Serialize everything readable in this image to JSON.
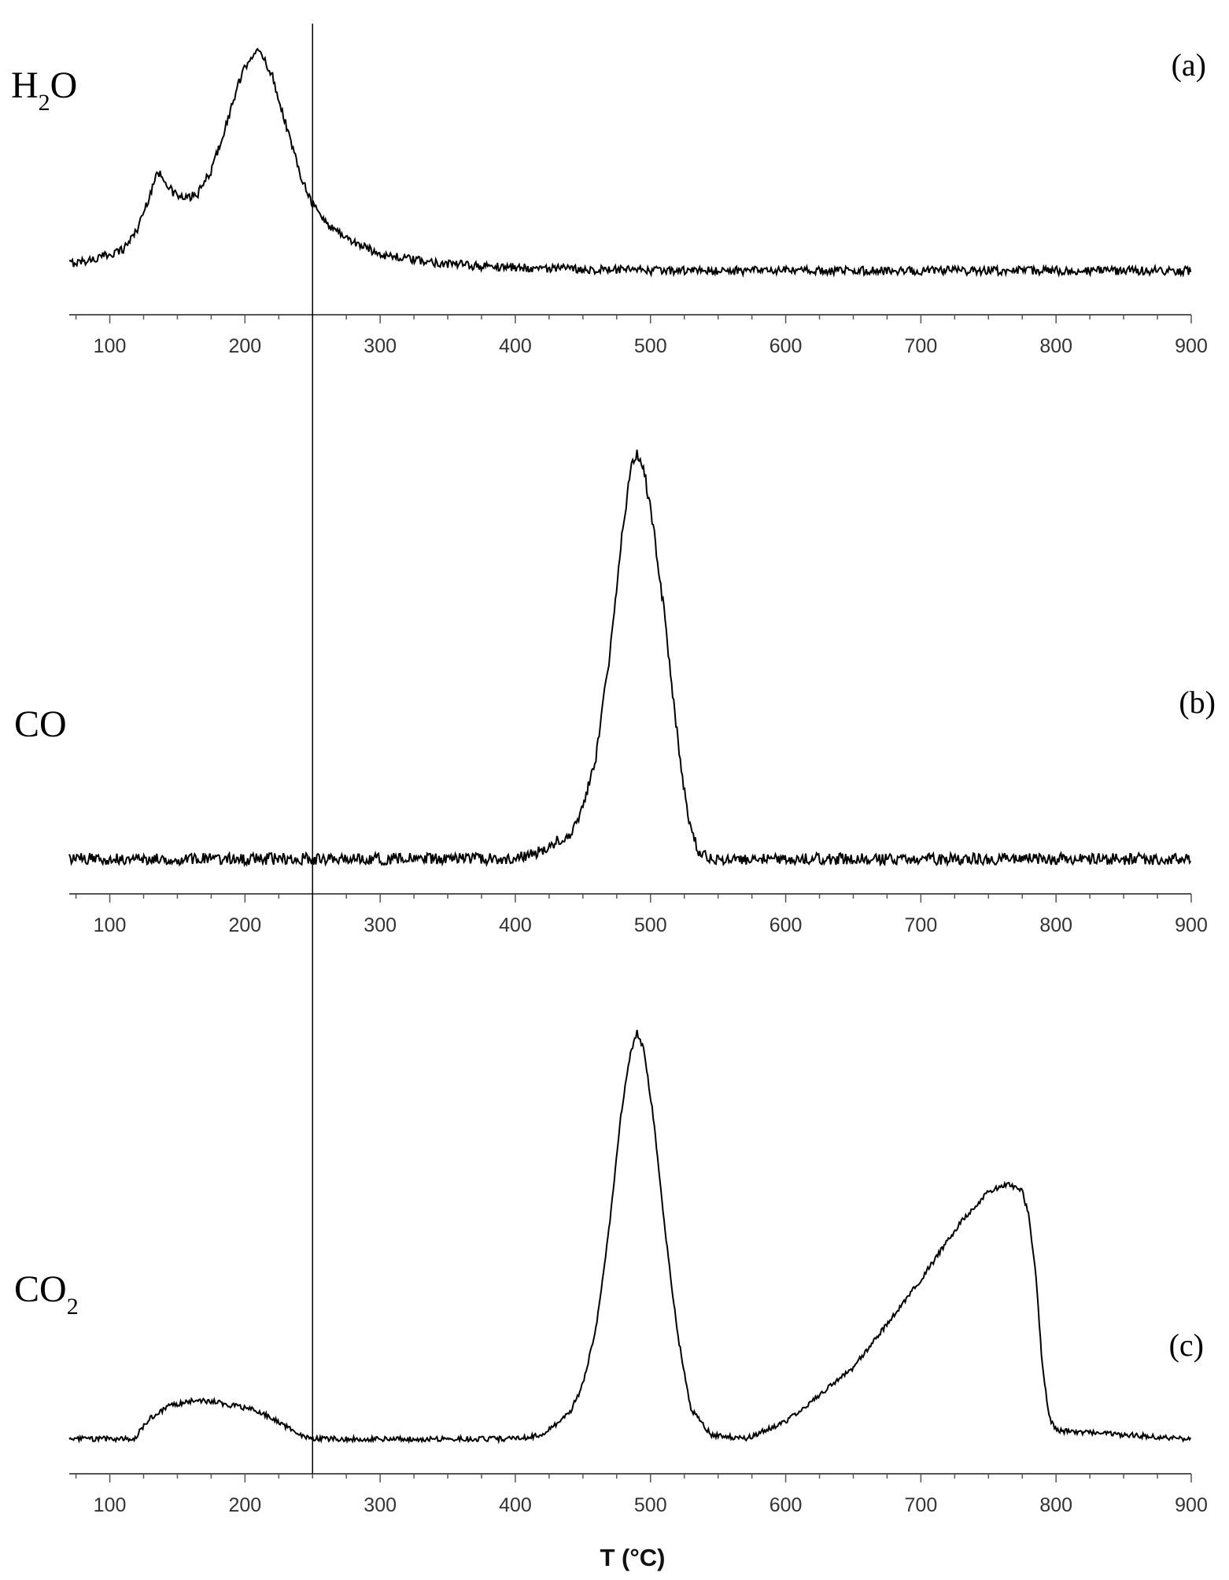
{
  "figure": {
    "xlabel": "T (°C)",
    "marker_temperature": 250,
    "line_color": "#000000"
  },
  "chart_data": [
    {
      "type": "line",
      "panel": "(a)",
      "species": {
        "main": "H",
        "sub": "2",
        "tail": "O"
      },
      "xlim": [
        70,
        900
      ],
      "x_ticks": [
        100,
        200,
        300,
        400,
        500,
        600,
        700,
        800,
        900
      ],
      "noise": 0.018,
      "series": [
        {
          "x": [
            70,
            90,
            110,
            120,
            128,
            133,
            136,
            140,
            146,
            155,
            165,
            175,
            185,
            195,
            203,
            208,
            213,
            220,
            230,
            240,
            250,
            260,
            280,
            300,
            330,
            370,
            420,
            500,
            600,
            700,
            800,
            900
          ],
          "y": [
            0.08,
            0.1,
            0.14,
            0.22,
            0.34,
            0.43,
            0.46,
            0.44,
            0.38,
            0.35,
            0.37,
            0.47,
            0.64,
            0.83,
            0.94,
            0.97,
            0.95,
            0.87,
            0.67,
            0.47,
            0.33,
            0.25,
            0.17,
            0.12,
            0.09,
            0.07,
            0.06,
            0.05,
            0.05,
            0.05,
            0.05,
            0.05
          ]
        }
      ]
    },
    {
      "type": "line",
      "panel": "(b)",
      "species": {
        "main": "CO",
        "sub": "",
        "tail": ""
      },
      "xlim": [
        70,
        900
      ],
      "x_ticks": [
        100,
        200,
        300,
        400,
        500,
        600,
        700,
        800,
        900
      ],
      "noise": 0.014,
      "series": [
        {
          "x": [
            70,
            200,
            300,
            400,
            420,
            440,
            450,
            460,
            470,
            478,
            485,
            490,
            495,
            502,
            510,
            520,
            528,
            535,
            545,
            600,
            700,
            800,
            900
          ],
          "y": [
            0.03,
            0.03,
            0.03,
            0.03,
            0.05,
            0.09,
            0.15,
            0.28,
            0.52,
            0.78,
            0.95,
            1.0,
            0.96,
            0.82,
            0.62,
            0.32,
            0.12,
            0.05,
            0.03,
            0.03,
            0.03,
            0.03,
            0.03
          ]
        }
      ]
    },
    {
      "type": "line",
      "panel": "(c)",
      "species": {
        "main": "CO",
        "sub": "2",
        "tail": ""
      },
      "xlim": [
        70,
        900
      ],
      "x_ticks": [
        100,
        200,
        300,
        400,
        500,
        600,
        700,
        800,
        900
      ],
      "noise": 0.006,
      "series": [
        {
          "x": [
            70,
            118,
            130,
            145,
            160,
            175,
            190,
            205,
            220,
            235,
            248,
            255,
            300,
            400,
            420,
            440,
            450,
            460,
            470,
            478,
            485,
            490,
            495,
            502,
            510,
            520,
            530,
            545,
            570,
            600,
            650,
            700,
            730,
            750,
            765,
            775,
            780,
            785,
            790,
            795,
            800,
            850,
            900
          ],
          "y": [
            0.03,
            0.03,
            0.08,
            0.11,
            0.12,
            0.12,
            0.11,
            0.1,
            0.08,
            0.05,
            0.03,
            0.03,
            0.03,
            0.03,
            0.04,
            0.09,
            0.16,
            0.3,
            0.55,
            0.8,
            0.95,
            1.0,
            0.96,
            0.8,
            0.55,
            0.28,
            0.1,
            0.04,
            0.03,
            0.07,
            0.2,
            0.41,
            0.55,
            0.62,
            0.64,
            0.62,
            0.56,
            0.42,
            0.2,
            0.08,
            0.05,
            0.04,
            0.03
          ]
        }
      ]
    }
  ]
}
